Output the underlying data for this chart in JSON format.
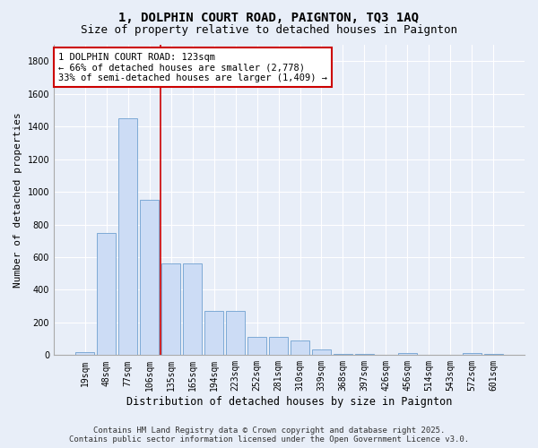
{
  "title": "1, DOLPHIN COURT ROAD, PAIGNTON, TQ3 1AQ",
  "subtitle": "Size of property relative to detached houses in Paignton",
  "xlabel": "Distribution of detached houses by size in Paignton",
  "ylabel": "Number of detached properties",
  "categories": [
    "19sqm",
    "48sqm",
    "77sqm",
    "106sqm",
    "135sqm",
    "165sqm",
    "194sqm",
    "223sqm",
    "252sqm",
    "281sqm",
    "310sqm",
    "339sqm",
    "368sqm",
    "397sqm",
    "426sqm",
    "456sqm",
    "514sqm",
    "543sqm",
    "572sqm",
    "601sqm"
  ],
  "values": [
    20,
    750,
    1450,
    950,
    560,
    560,
    270,
    270,
    110,
    110,
    90,
    35,
    10,
    10,
    0,
    15,
    0,
    0,
    15,
    10
  ],
  "bar_color": "#ccdcf5",
  "bar_edge_color": "#6fa0d0",
  "annotation_box_text": "1 DOLPHIN COURT ROAD: 123sqm\n← 66% of detached houses are smaller (2,778)\n33% of semi-detached houses are larger (1,409) →",
  "annotation_box_color": "#ffffff",
  "annotation_box_edge_color": "#cc0000",
  "vline_color": "#cc0000",
  "vline_x": 3.5,
  "ylim": [
    0,
    1900
  ],
  "background_color": "#e8eef8",
  "grid_color": "#ffffff",
  "footer_line1": "Contains HM Land Registry data © Crown copyright and database right 2025.",
  "footer_line2": "Contains public sector information licensed under the Open Government Licence v3.0.",
  "title_fontsize": 10,
  "subtitle_fontsize": 9,
  "xlabel_fontsize": 8.5,
  "ylabel_fontsize": 8,
  "tick_fontsize": 7,
  "annotation_fontsize": 7.5,
  "footer_fontsize": 6.5
}
